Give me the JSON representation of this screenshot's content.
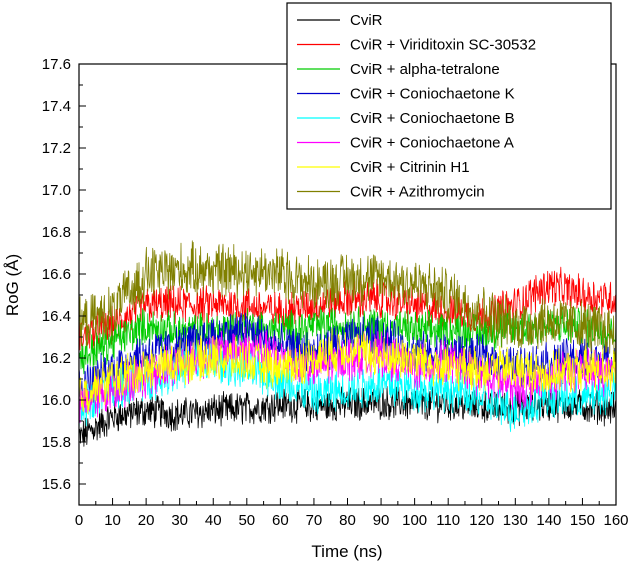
{
  "chart_data": {
    "type": "line",
    "title": "",
    "xlabel": "Time (ns)",
    "ylabel": "RoG (Å)",
    "xlim": [
      0,
      160
    ],
    "ylim": [
      15.5,
      17.6
    ],
    "x_ticks": [
      "0",
      "10",
      "20",
      "30",
      "40",
      "50",
      "60",
      "70",
      "80",
      "90",
      "100",
      "110",
      "120",
      "130",
      "140",
      "150",
      "160"
    ],
    "y_ticks": [
      "15.6",
      "15.8",
      "16.0",
      "16.2",
      "16.4",
      "16.6",
      "16.8",
      "17.0",
      "17.2",
      "17.4",
      "17.6"
    ],
    "legend_position": "top-right",
    "x": [
      0,
      10,
      20,
      30,
      40,
      50,
      60,
      70,
      80,
      90,
      100,
      110,
      120,
      130,
      140,
      150,
      160
    ],
    "series": [
      {
        "name": "CviR",
        "color": "#000000",
        "values": [
          15.82,
          15.92,
          15.95,
          15.93,
          15.95,
          15.96,
          15.98,
          15.97,
          15.98,
          15.99,
          15.98,
          15.98,
          15.97,
          15.96,
          15.98,
          15.97,
          15.96
        ]
      },
      {
        "name": "CviR + Viriditoxin SC-30532",
        "color": "#ff0000",
        "values": [
          16.3,
          16.35,
          16.45,
          16.45,
          16.45,
          16.45,
          16.42,
          16.45,
          16.48,
          16.48,
          16.45,
          16.42,
          16.4,
          16.45,
          16.55,
          16.5,
          16.48
        ]
      },
      {
        "name": "CviR + alpha-tetralone",
        "color": "#00cc00",
        "values": [
          16.2,
          16.28,
          16.35,
          16.32,
          16.33,
          16.35,
          16.33,
          16.35,
          16.36,
          16.35,
          16.33,
          16.33,
          16.32,
          16.34,
          16.35,
          16.35,
          16.33
        ]
      },
      {
        "name": "CviR + Coniochaetone K",
        "color": "#0000cc",
        "values": [
          16.05,
          16.15,
          16.22,
          16.25,
          16.3,
          16.33,
          16.25,
          16.22,
          16.28,
          16.3,
          16.22,
          16.22,
          16.2,
          16.15,
          16.18,
          16.2,
          16.18
        ]
      },
      {
        "name": "CviR + Coniochaetone B",
        "color": "#00ffff",
        "values": [
          15.95,
          16.05,
          16.1,
          16.15,
          16.18,
          16.15,
          16.1,
          16.02,
          16.05,
          16.08,
          16.05,
          16.05,
          16.0,
          15.95,
          16.02,
          16.0,
          16.05
        ]
      },
      {
        "name": "CviR + Coniochaetone A",
        "color": "#ff00ff",
        "values": [
          15.98,
          16.05,
          16.12,
          16.18,
          16.22,
          16.25,
          16.2,
          16.15,
          16.2,
          16.22,
          16.15,
          16.18,
          16.12,
          16.05,
          16.1,
          16.15,
          16.12
        ]
      },
      {
        "name": "CviR + Citrinin H1",
        "color": "#ffff00",
        "values": [
          16.02,
          16.1,
          16.15,
          16.18,
          16.2,
          16.18,
          16.15,
          16.2,
          16.25,
          16.2,
          16.2,
          16.15,
          16.15,
          16.15,
          16.12,
          16.15,
          16.15
        ]
      },
      {
        "name": "CviR + Azithromycin",
        "color": "#808000",
        "values": [
          16.35,
          16.42,
          16.6,
          16.62,
          16.62,
          16.62,
          16.6,
          16.55,
          16.58,
          16.58,
          16.55,
          16.5,
          16.42,
          16.35,
          16.38,
          16.35,
          16.32
        ]
      }
    ]
  }
}
